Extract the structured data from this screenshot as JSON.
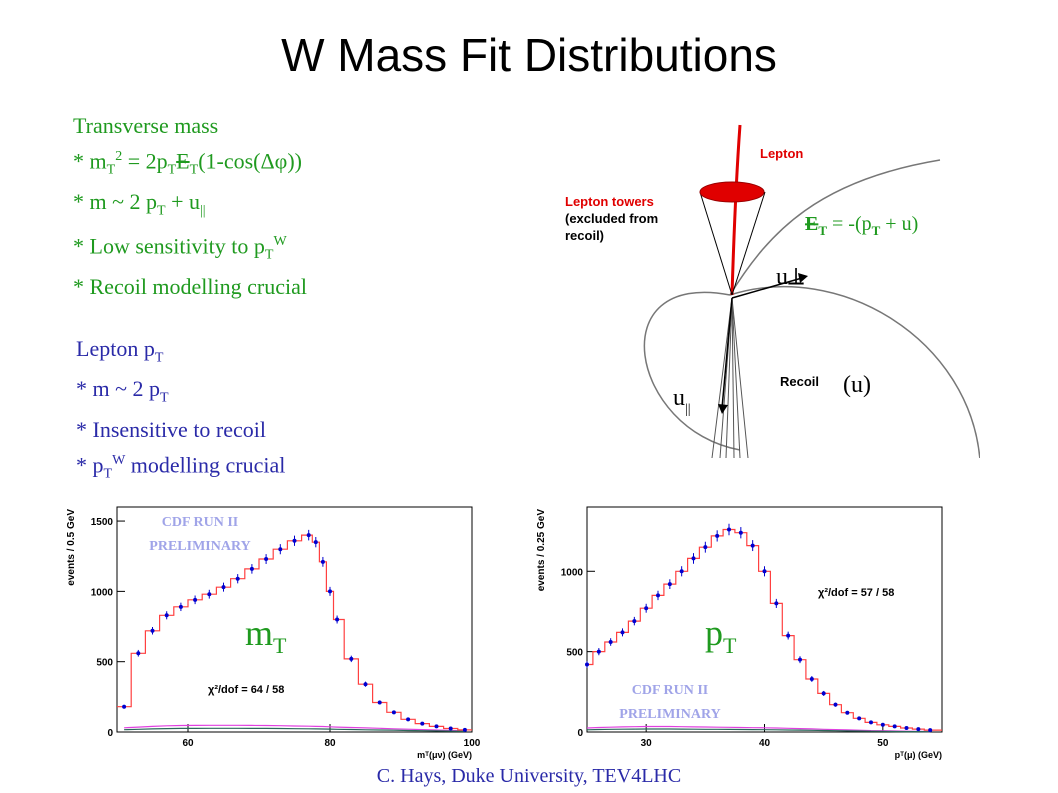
{
  "title": "W Mass Fit Distributions",
  "transverse": {
    "heading": "Transverse mass",
    "l1_a": "* m",
    "l1_sub": "T",
    "l1_sup": "2",
    "l1_b": " = 2p",
    "l1_sub2": "T",
    "l1_c": "E",
    "l1_sub3": "T",
    "l1_d": "(1-cos(Δφ))",
    "l2_a": "* m ~ 2 p",
    "l2_sub": "T",
    "l2_b": " + u",
    "l2_sub2": "||",
    "l3_a": "* Low sensitivity to p",
    "l3_sub": "T",
    "l3_sup": "W",
    "l4": "* Recoil modelling crucial"
  },
  "lepton": {
    "heading_a": "Lepton p",
    "heading_sub": "T",
    "l1_a": "* m ~ 2 p",
    "l1_sub": "T",
    "l2": "* Insensitive to recoil",
    "l3_a": "* p",
    "l3_sub": "T",
    "l3_sup": "W",
    "l3_b": " modelling crucial"
  },
  "diagram": {
    "lepton_label": "Lepton",
    "towers_l1": "Lepton towers",
    "towers_l2": "(excluded from",
    "towers_l3": "recoil)",
    "met_a": "E",
    "met_sub": "T",
    "met_b": " = -(p",
    "met_sub2": "T",
    "met_c": " + u)",
    "uperp": "u⟂",
    "upar": "u",
    "upar_sub": "||",
    "recoil_label": "Recoil",
    "recoil_paren": "(u)"
  },
  "footer": "C. Hays, Duke University, TEV4LHC",
  "chart_data": [
    {
      "type": "scatter",
      "ylabel": "events / 0.5 GeV",
      "xlabel": "mᵀ(μν) (GeV)",
      "xlim": [
        50,
        100
      ],
      "ylim": [
        0,
        1600
      ],
      "xticks": [
        "60",
        "80",
        "100"
      ],
      "yticks": [
        "0",
        "500",
        "1000",
        "1500"
      ],
      "watermark_l1": "CDF RUN II",
      "watermark_l2": "PRELIMINARY",
      "big_label": "m",
      "big_label_sub": "T",
      "chi2": "χ²/dof = 64 / 58",
      "x": [
        51,
        53,
        55,
        57,
        59,
        61,
        63,
        65,
        67,
        69,
        71,
        73,
        75,
        77,
        78,
        79,
        80,
        81,
        83,
        85,
        87,
        89,
        91,
        93,
        95,
        97,
        99
      ],
      "y": [
        180,
        560,
        720,
        830,
        890,
        940,
        980,
        1030,
        1090,
        1160,
        1230,
        1300,
        1360,
        1400,
        1350,
        1210,
        1000,
        800,
        520,
        340,
        210,
        140,
        90,
        60,
        40,
        25,
        15
      ],
      "background_y": [
        30,
        35,
        40,
        44,
        46,
        47,
        48,
        48,
        48,
        47,
        46,
        45,
        43,
        41,
        40,
        39,
        37,
        35,
        32,
        29,
        26,
        23,
        20,
        17,
        14,
        11,
        8
      ]
    },
    {
      "type": "scatter",
      "ylabel": "events / 0.25 GeV",
      "xlabel": "pᵀ(μ) (GeV)",
      "xlim": [
        25,
        55
      ],
      "ylim": [
        0,
        1400
      ],
      "xticks": [
        "30",
        "40",
        "50"
      ],
      "yticks": [
        "0",
        "500",
        "1000"
      ],
      "watermark_l1": "CDF RUN II",
      "watermark_l2": "PRELIMINARY",
      "big_label": "p",
      "big_label_sub": "T",
      "chi2": "χ²/dof = 57 / 58",
      "x": [
        25,
        26,
        27,
        28,
        29,
        30,
        31,
        32,
        33,
        34,
        35,
        36,
        37,
        38,
        39,
        40,
        41,
        42,
        43,
        44,
        45,
        46,
        47,
        48,
        49,
        50,
        51,
        52,
        53,
        54
      ],
      "y": [
        420,
        500,
        560,
        620,
        690,
        770,
        850,
        920,
        1000,
        1080,
        1150,
        1220,
        1260,
        1240,
        1160,
        1000,
        800,
        600,
        450,
        330,
        240,
        170,
        120,
        85,
        60,
        45,
        35,
        25,
        18,
        12
      ],
      "background_y": [
        25,
        28,
        30,
        32,
        33,
        34,
        34,
        34,
        33,
        32,
        31,
        30,
        29,
        28,
        27,
        26,
        25,
        23,
        21,
        19,
        17,
        15,
        13,
        11,
        9,
        8,
        6,
        5,
        4,
        3
      ]
    }
  ]
}
